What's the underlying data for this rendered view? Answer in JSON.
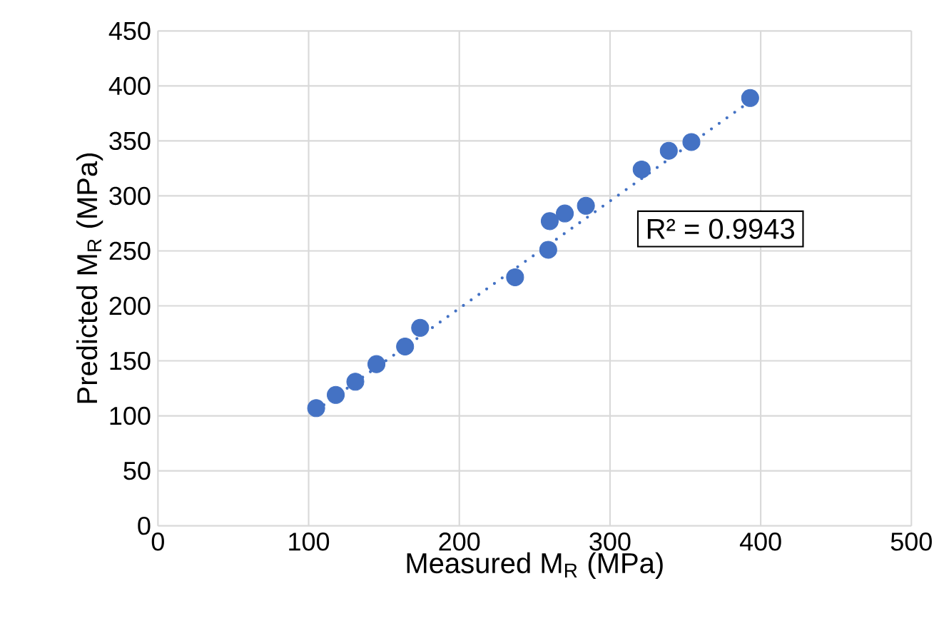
{
  "chart_data": {
    "type": "scatter",
    "xlabel": "Measured M$_{R}$ (MPa)",
    "ylabel": "Predicted M$_{R}$ (MPa)",
    "xlim": [
      0,
      500
    ],
    "xticks": [
      0,
      100,
      200,
      300,
      400,
      500
    ],
    "ylim": [
      0,
      450
    ],
    "yticks": [
      0,
      50,
      100,
      150,
      200,
      250,
      300,
      350,
      400,
      450
    ],
    "grid": true,
    "annotations": [
      "R² = 0.9943"
    ],
    "series": [
      {
        "color": "#4472c4",
        "marker": "circle",
        "x": [
          105,
          118,
          131,
          145,
          164,
          174,
          237,
          259,
          260,
          270,
          284,
          321,
          339,
          354,
          393
        ],
        "values": [
          107,
          119,
          131,
          147,
          163,
          180,
          226,
          251,
          277,
          284,
          291,
          324,
          341,
          349,
          389
        ]
      },
      {
        "type": "line",
        "color": "#4472c4",
        "line_style": "dotted",
        "marker": "none",
        "x": [
          105,
          393
        ],
        "values": [
          105,
          386
        ]
      }
    ]
  }
}
